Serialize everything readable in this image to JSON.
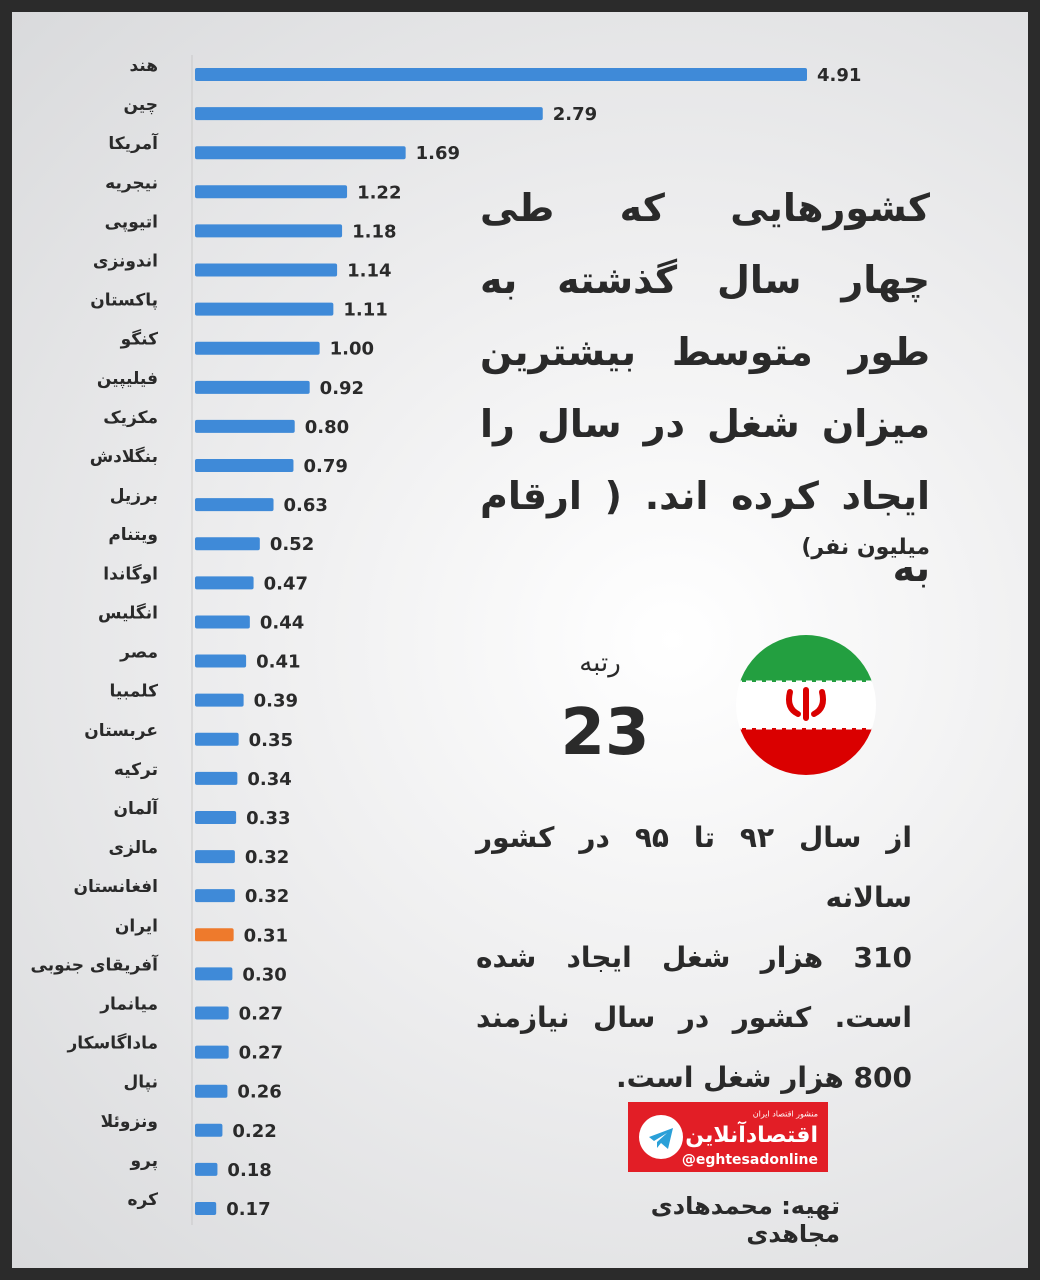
{
  "chart_data": {
    "type": "bar",
    "title": [
      "کشورهایی که طی",
      "چهار سال گذشته به",
      "طور متوسط بیشترین",
      "میزان شغل در سال را",
      "ایجاد کرده اند. ( ارقام به"
    ],
    "subtitle": "میلیون نفر)",
    "categories": [
      "هند",
      "چین",
      "آمریکا",
      "نیجریه",
      "اتیوپی",
      "اندونزی",
      "پاکستان",
      "کنگو",
      "فیلیپین",
      "مکزیک",
      "بنگلادش",
      "برزیل",
      "ویتنام",
      "اوگاندا",
      "انگلیس",
      "مصر",
      "کلمبیا",
      "عربستان",
      "ترکیه",
      "آلمان",
      "مالزی",
      "افغانستان",
      "ایران",
      "آفریقای جنوبی",
      "میانمار",
      "ماداگاسکار",
      "نپال",
      "ونزوئلا",
      "پرو",
      "کره"
    ],
    "values": [
      4.91,
      2.79,
      1.69,
      1.22,
      1.18,
      1.14,
      1.11,
      1,
      0.92,
      0.8,
      0.79,
      0.63,
      0.52,
      0.47,
      0.44,
      0.41,
      0.39,
      0.35,
      0.34,
      0.33,
      0.32,
      0.32,
      0.31,
      0.3,
      0.27,
      0.27,
      0.26,
      0.22,
      0.18,
      0.17
    ],
    "value_labels": [
      "4.91",
      "2.79",
      "1.69",
      "1.22",
      "1.18",
      "1.14",
      "1.11",
      "1.00",
      "0.92",
      "0.80",
      "0.79",
      "0.63",
      "0.52",
      "0.47",
      "0.44",
      "0.41",
      "0.39",
      "0.35",
      "0.34",
      "0.33",
      "0.32",
      "0.32",
      "0.31",
      "0.30",
      "0.27",
      "0.27",
      "0.26",
      "0.22",
      "0.18",
      "0.17"
    ],
    "color": "#3f8ad8",
    "highlight": {
      "category": "ایران",
      "color": "#ee7a2c"
    }
  },
  "rank": {
    "label": "رتبه",
    "value": 23
  },
  "note": [
    "از سال ۹۲ تا ۹۵ در کشور سالانه",
    "310 هزار شغل ایجاد شده",
    "است. کشور در سال نیازمند",
    "800 هزار شغل است."
  ],
  "logo": {
    "name": "اقتصادآنلاین",
    "tagline": "منشور اقتصاد ایران",
    "handle": "@eghtesadonline"
  },
  "credit": "تهیه: محمدهادی مجاهدی"
}
